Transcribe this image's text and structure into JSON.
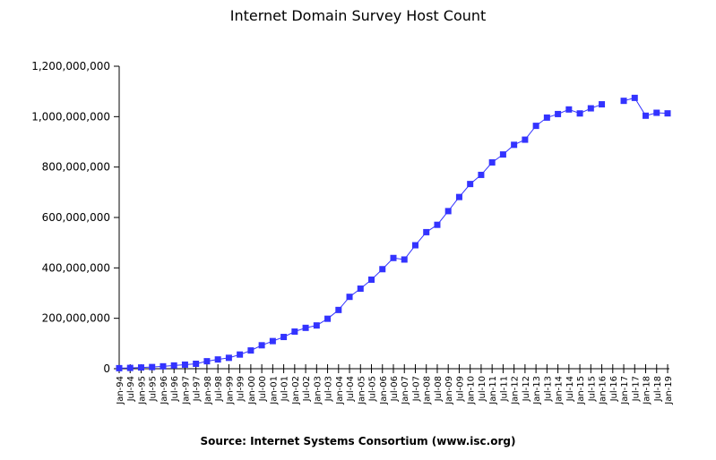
{
  "chart_data": {
    "type": "line",
    "title": "Internet Domain Survey Host Count",
    "source": "Source: Internet Systems Consortium (www.isc.org)",
    "ylim": [
      0,
      1200000000
    ],
    "yticks": [
      0,
      200000000,
      400000000,
      600000000,
      800000000,
      1000000000,
      1200000000
    ],
    "ytick_labels": [
      "0",
      "200,000,000",
      "400,000,000",
      "600,000,000",
      "800,000,000",
      "1,000,000,000",
      "1,200,000,000"
    ],
    "categories": [
      "Jan-94",
      "Jul-94",
      "Jan-95",
      "Jul-95",
      "Jan-96",
      "Jul-96",
      "Jan-97",
      "Jul-97",
      "Jan-98",
      "Jul-98",
      "Jan-99",
      "Jul-99",
      "Jan-00",
      "Jul-00",
      "Jan-01",
      "Jul-01",
      "Jan-02",
      "Jul-02",
      "Jan-03",
      "Jul-03",
      "Jan-04",
      "Jul-04",
      "Jan-05",
      "Jul-05",
      "Jan-06",
      "Jul-06",
      "Jan-07",
      "Jul-07",
      "Jan-08",
      "Jul-08",
      "Jan-09",
      "Jul-09",
      "Jan-10",
      "Jul-10",
      "Jan-11",
      "Jul-11",
      "Jan-12",
      "Jul-12",
      "Jan-13",
      "Jul-13",
      "Jan-14",
      "Jul-14",
      "Jan-15",
      "Jul-15",
      "Jan-16",
      "Jul-16",
      "Jan-17",
      "Jul-17",
      "Jan-18",
      "Jul-18",
      "Jan-19"
    ],
    "series": [
      {
        "color": "#3333ff",
        "values": [
          2200000,
          3200000,
          4900000,
          6600000,
          9500000,
          12900000,
          16100000,
          19500000,
          29700000,
          36700000,
          43200000,
          56200000,
          72400000,
          93000000,
          109600000,
          125900000,
          147300000,
          162100000,
          171600000,
          198200000,
          233100000,
          285100000,
          317600000,
          353300000,
          394900000,
          439300000,
          433200000,
          489800000,
          541700000,
          570900000,
          625200000,
          681100000,
          732700000,
          768900000,
          818400000,
          849900000,
          888200000,
          908600000,
          963500000,
          996200000,
          1010300000,
          1028500000,
          1012700000,
          1033000000,
          1048900000,
          null,
          1062700000,
          1074400000,
          1003700000,
          1015300000,
          1013000000
        ]
      }
    ],
    "grid": false,
    "legend": "none"
  }
}
